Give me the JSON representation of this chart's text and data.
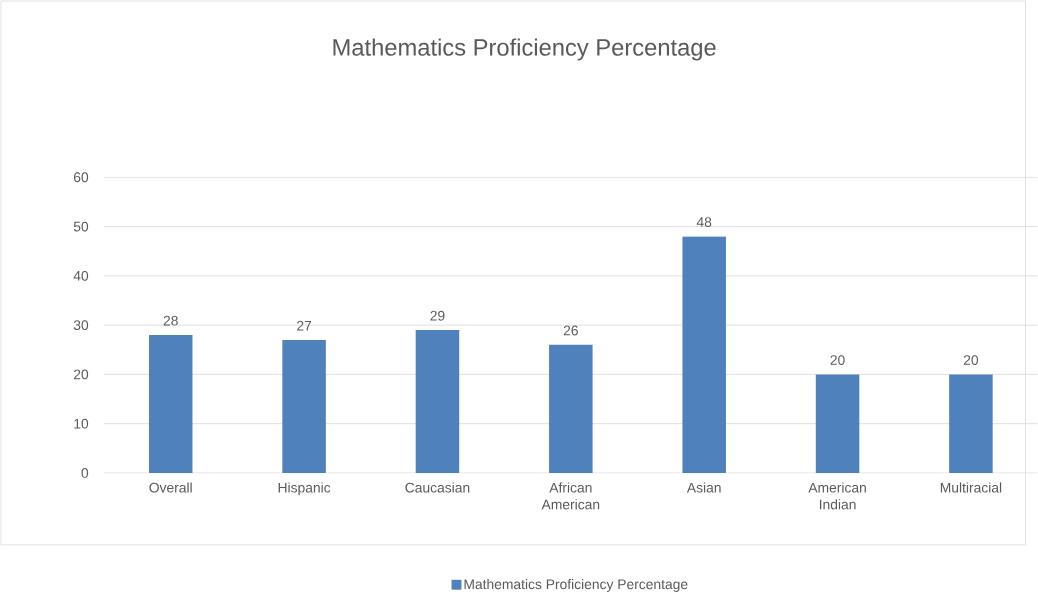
{
  "chart_data": {
    "type": "bar",
    "title": "Mathematics Proficiency Percentage",
    "categories": [
      "Overall",
      "Hispanic",
      "Caucasian",
      "African American",
      "Asian",
      "American Indian",
      "Multiracial"
    ],
    "series": [
      {
        "name": "Mathematics Proficiency Percentage",
        "color": "#4f81bd",
        "values": [
          28,
          27,
          29,
          26,
          48,
          20,
          20
        ]
      }
    ],
    "ylim": [
      0,
      60
    ],
    "yticks": [
      0,
      10,
      20,
      30,
      40,
      50,
      60
    ],
    "grid": "y",
    "legend": "bottom",
    "data_labels": true
  }
}
